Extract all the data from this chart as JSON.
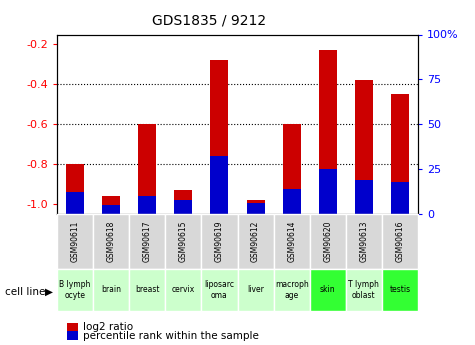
{
  "title": "GDS1835 / 9212",
  "samples": [
    "GSM90611",
    "GSM90618",
    "GSM90617",
    "GSM90615",
    "GSM90619",
    "GSM90612",
    "GSM90614",
    "GSM90620",
    "GSM90613",
    "GSM90616"
  ],
  "cell_lines": [
    "B lymph\nocyte",
    "brain",
    "breast",
    "cervix",
    "liposarc\noma",
    "liver",
    "macroph\nage",
    "skin",
    "T lymph\noblast",
    "testis"
  ],
  "cell_line_colors": [
    "#ccffcc",
    "#ccffcc",
    "#ccffcc",
    "#ccffcc",
    "#ccffcc",
    "#ccffcc",
    "#ccffcc",
    "#33ff33",
    "#ccffcc",
    "#33ff33"
  ],
  "log2_ratio": [
    -0.8,
    -0.96,
    -0.6,
    -0.93,
    -0.28,
    -0.98,
    -0.6,
    -0.23,
    -0.38,
    -0.45
  ],
  "percentile_rank": [
    12,
    5,
    10,
    8,
    32,
    6,
    14,
    25,
    19,
    18
  ],
  "bar_color_red": "#cc0000",
  "bar_color_blue": "#0000cc",
  "ylim_left": [
    -1.05,
    -0.15
  ],
  "ylim_right": [
    0,
    100
  ],
  "yticks_left": [
    -1.0,
    -0.8,
    -0.6,
    -0.4,
    -0.2
  ],
  "yticks_right": [
    0,
    25,
    50,
    75,
    100
  ],
  "ytick_labels_right": [
    "0",
    "25",
    "50",
    "75",
    "100%"
  ],
  "background_color": "#ffffff",
  "plot_bg_color": "#ffffff",
  "bar_width": 0.5,
  "pct_scale": 0.009
}
